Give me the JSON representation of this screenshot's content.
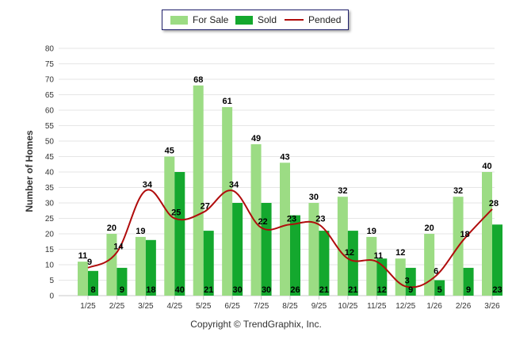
{
  "chart_data": {
    "type": "bar",
    "title": "",
    "xlabel": "",
    "ylabel": "Number of Homes",
    "ylim": [
      0,
      80
    ],
    "ytick_step": 5,
    "grid": true,
    "legend_position": "top-center",
    "categories": [
      "1/25",
      "2/25",
      "3/25",
      "4/25",
      "5/25",
      "6/25",
      "7/25",
      "8/25",
      "9/25",
      "10/25",
      "11/25",
      "12/25",
      "1/26",
      "2/26",
      "3/26"
    ],
    "series": [
      {
        "name": "For Sale",
        "kind": "bar",
        "color": "#9cdc84",
        "values": [
          11,
          20,
          19,
          45,
          68,
          61,
          49,
          43,
          30,
          32,
          19,
          12,
          20,
          32,
          40
        ]
      },
      {
        "name": "Sold",
        "kind": "bar",
        "color": "#14a82e",
        "values": [
          8,
          9,
          18,
          40,
          21,
          30,
          30,
          26,
          21,
          21,
          12,
          9,
          5,
          9,
          23
        ]
      },
      {
        "name": "Pended",
        "kind": "line",
        "color": "#b00c0c",
        "values": [
          9,
          14,
          34,
          25,
          27,
          34,
          22,
          23,
          23,
          12,
          11,
          3,
          6,
          18,
          28
        ]
      }
    ]
  },
  "footer": {
    "copyright": "Copyright © TrendGraphix, Inc."
  }
}
